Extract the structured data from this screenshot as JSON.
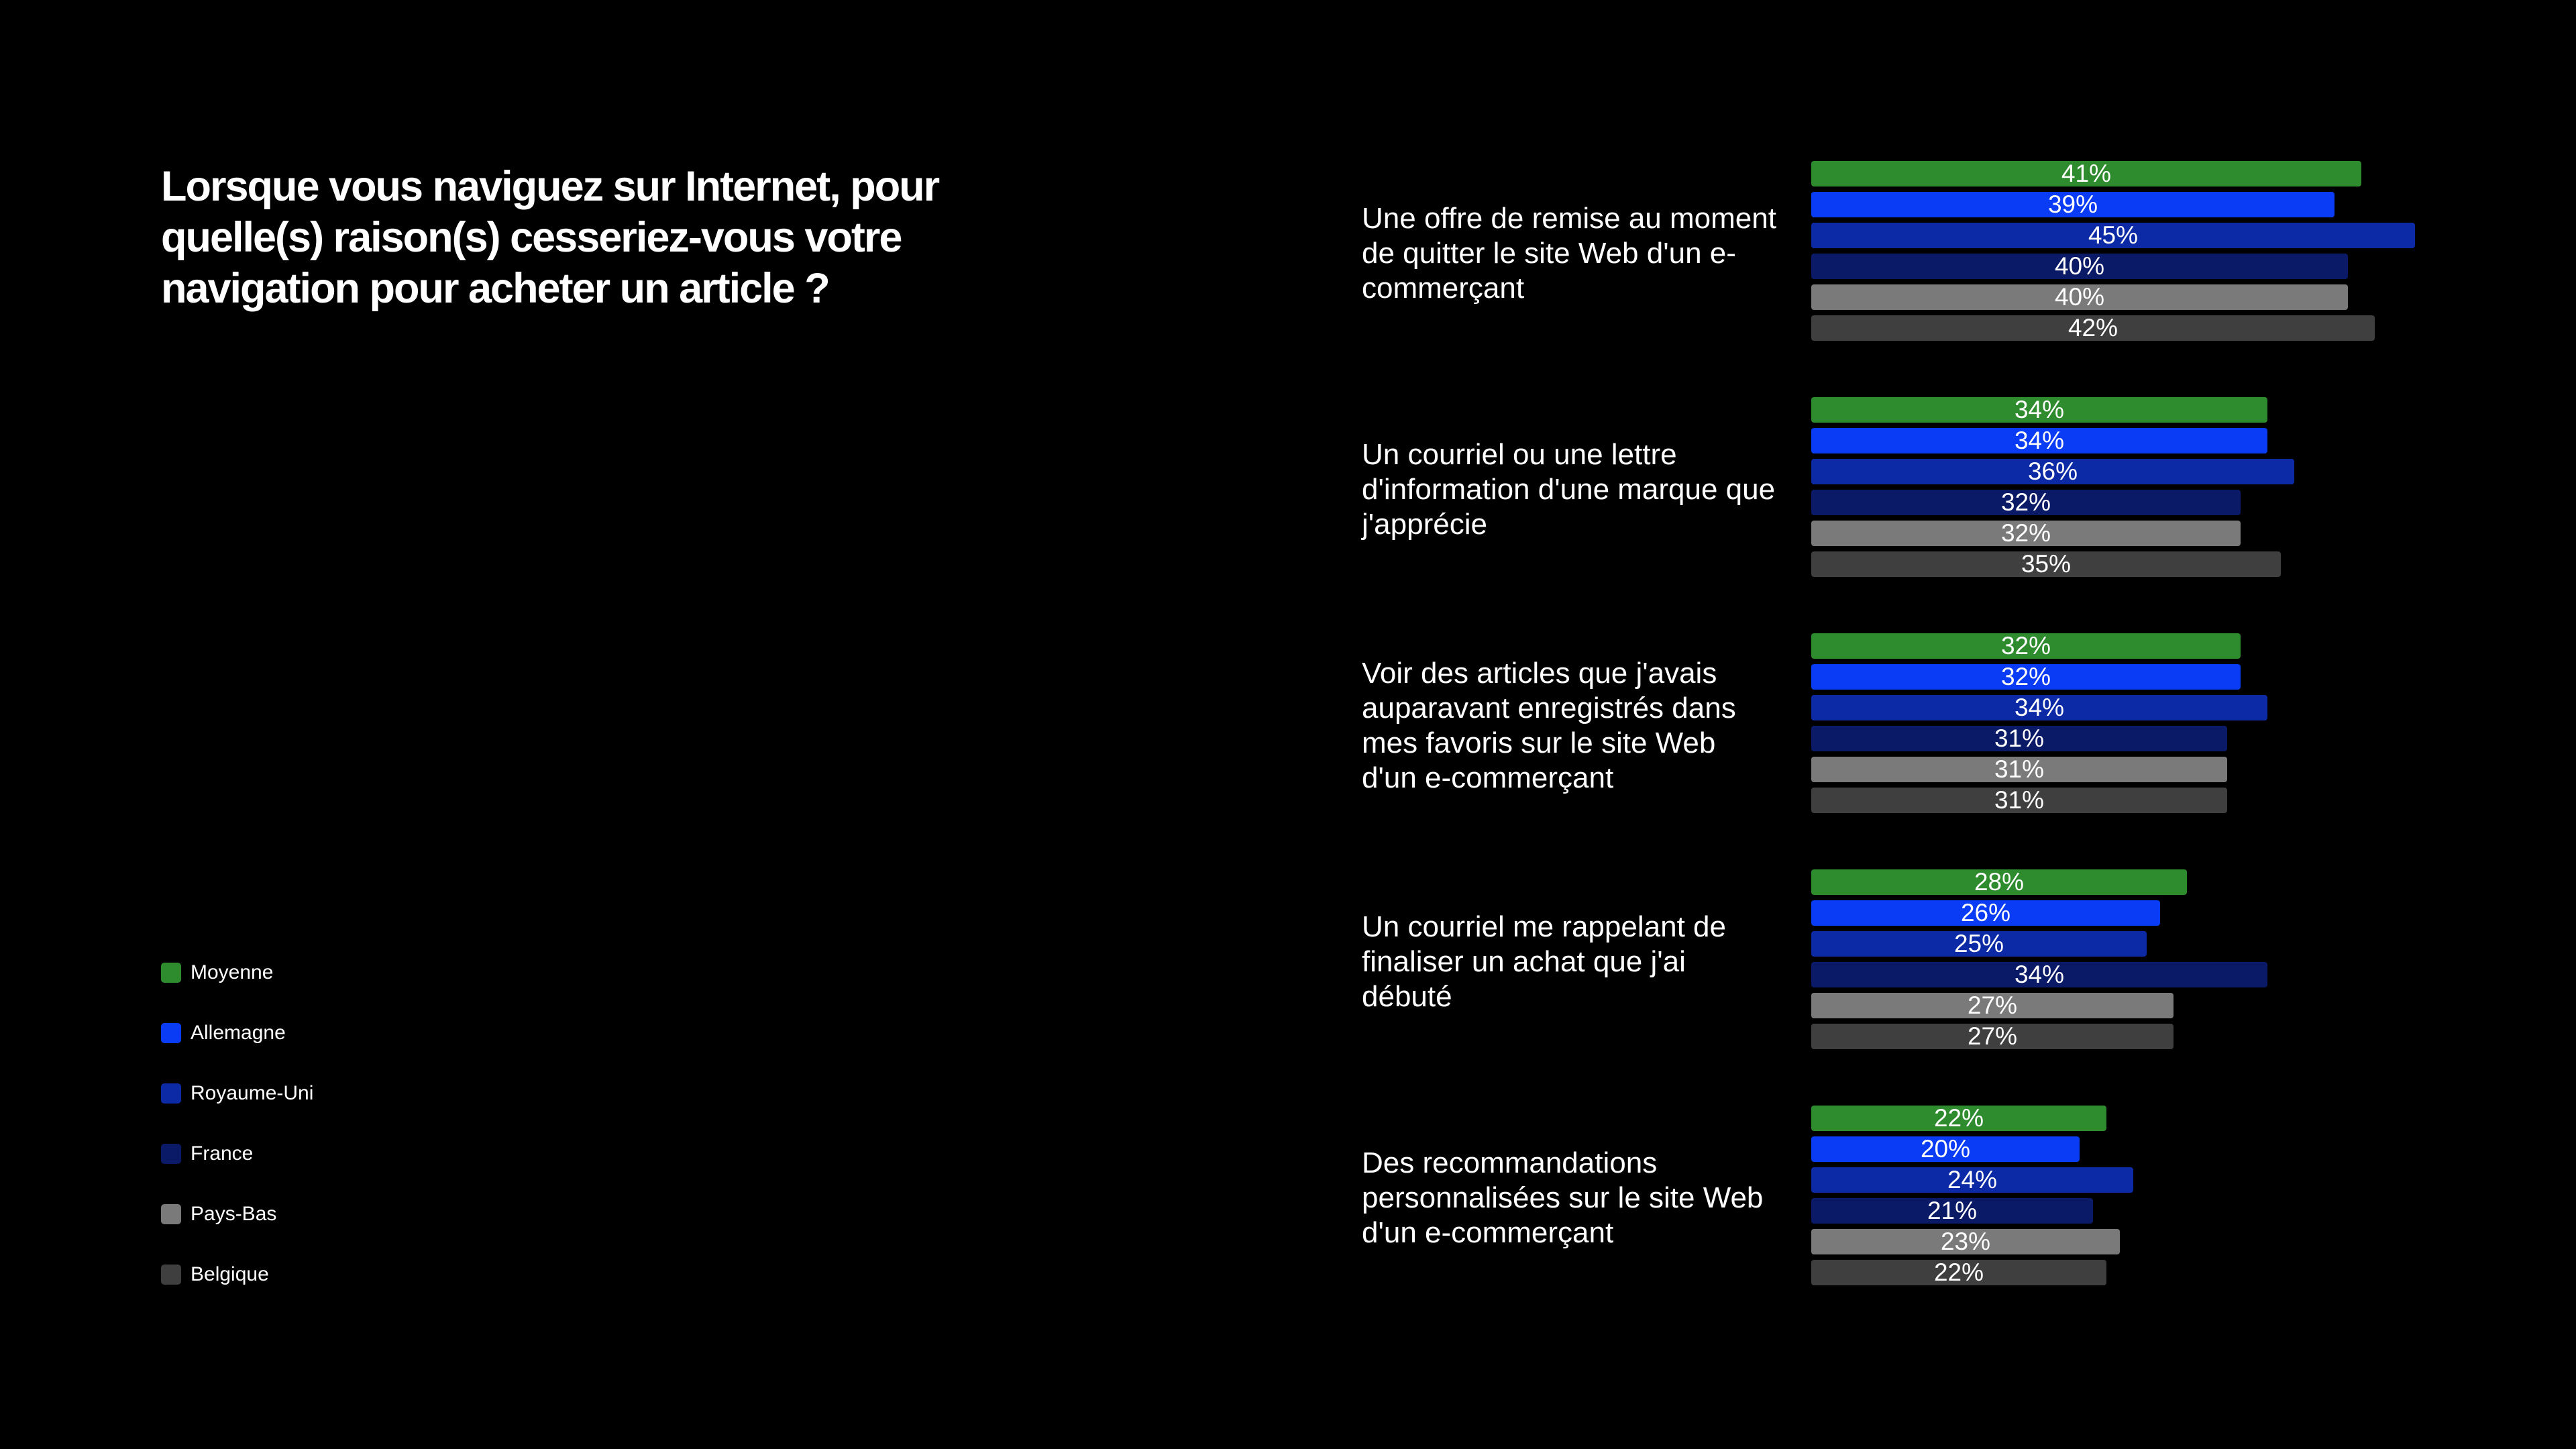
{
  "title": "Lorsque vous naviguez sur Internet, pour quelle(s) raison(s) cesseriez-vous votre navigation pour acheter un article ?",
  "chart_data": {
    "type": "bar",
    "orientation": "horizontal",
    "title": "Lorsque vous naviguez sur Internet, pour quelle(s) raison(s) cesseriez-vous votre navigation pour acheter un article ?",
    "unit": "%",
    "legend_position": "left",
    "grid": false,
    "xlim": [
      0,
      45
    ],
    "categories": [
      "Une offre de remise au moment de quitter le site Web d'un e-commerçant",
      "Un courriel ou une lettre d'information d'une marque que j'apprécie",
      "Voir des articles que j'avais auparavant enregistrés dans mes favoris sur le site Web d'un e-commerçant",
      "Un courriel me rappelant de finaliser un achat que j'ai débuté",
      "Des recommandations personnalisées sur le site Web d'un e-commerçant"
    ],
    "series": [
      {
        "name": "Moyenne",
        "color": "#2e8b2e",
        "values": [
          41,
          34,
          32,
          28,
          22
        ],
        "labels": [
          "41%",
          "34%",
          "32%",
          "28%",
          "22%"
        ]
      },
      {
        "name": "Allemagne",
        "color": "#0a3cf5",
        "values": [
          39,
          34,
          32,
          26,
          20
        ],
        "labels": [
          "39%",
          "34%",
          "32%",
          "26%",
          "20%"
        ]
      },
      {
        "name": "Royaume-Uni",
        "color": "#0d2aa6",
        "values": [
          45,
          36,
          34,
          25,
          24
        ],
        "labels": [
          "45%",
          "36%",
          "34%",
          "25%",
          "24%"
        ]
      },
      {
        "name": "France",
        "color": "#0b1a66",
        "values": [
          40,
          32,
          31,
          34,
          21
        ],
        "labels": [
          "40%",
          "32%",
          "31%",
          "34%",
          "21%"
        ]
      },
      {
        "name": "Pays-Bas",
        "color": "#7a7a7a",
        "values": [
          40,
          32,
          31,
          27,
          23
        ],
        "labels": [
          "40%",
          "32%",
          "31%",
          "27%",
          "23%"
        ]
      },
      {
        "name": "Belgique",
        "color": "#3f3f3f",
        "values": [
          42,
          35,
          31,
          27,
          22
        ],
        "labels": [
          "42%",
          "35%",
          "31%",
          "27%",
          "22%"
        ]
      }
    ]
  }
}
